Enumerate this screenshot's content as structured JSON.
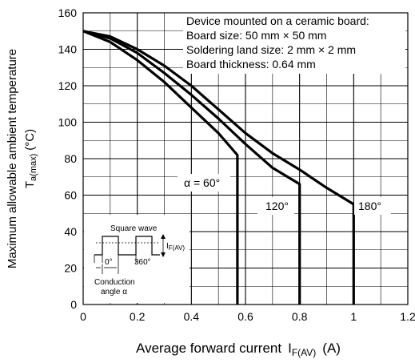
{
  "chart_data": {
    "type": "line",
    "xlim": [
      0,
      1.2
    ],
    "ylim": [
      0,
      160
    ],
    "x_ticks": [
      "0",
      "0.2",
      "0.4",
      "0.6",
      "0.8",
      "1",
      "1.2"
    ],
    "y_ticks": [
      "0",
      "20",
      "40",
      "60",
      "80",
      "100",
      "120",
      "140",
      "160"
    ],
    "grid": true,
    "ylabel": {
      "main": "Maximum allowable ambient temperature",
      "sym": "T",
      "sub": "a(max)",
      "unit": "(°C)"
    },
    "xlabel": {
      "main": "Average forward current",
      "sym": "I",
      "sub": "F(AV)",
      "unit": "(A)"
    },
    "series": [
      {
        "label": "α = 60°",
        "points": [
          [
            0,
            150
          ],
          [
            0.1,
            144
          ],
          [
            0.2,
            134
          ],
          [
            0.3,
            122
          ],
          [
            0.4,
            108
          ],
          [
            0.5,
            94
          ],
          [
            0.57,
            82
          ],
          [
            0.57,
            0
          ]
        ]
      },
      {
        "label": "120°",
        "points": [
          [
            0,
            150
          ],
          [
            0.1,
            146
          ],
          [
            0.2,
            138
          ],
          [
            0.3,
            127
          ],
          [
            0.4,
            115
          ],
          [
            0.5,
            102
          ],
          [
            0.6,
            88
          ],
          [
            0.7,
            75
          ],
          [
            0.8,
            66
          ],
          [
            0.8,
            0
          ]
        ]
      },
      {
        "label": "180°",
        "points": [
          [
            0,
            150
          ],
          [
            0.1,
            147
          ],
          [
            0.2,
            140
          ],
          [
            0.3,
            131
          ],
          [
            0.4,
            120
          ],
          [
            0.5,
            107
          ],
          [
            0.6,
            94
          ],
          [
            0.7,
            83
          ],
          [
            0.8,
            74
          ],
          [
            0.9,
            64
          ],
          [
            1.0,
            55
          ],
          [
            1.0,
            0
          ]
        ]
      }
    ],
    "annotation": {
      "lines": [
        "Device mounted on a ceramic board:",
        "Board size: 50 mm × 50 mm",
        "Soldering land size: 2 mm × 2 mm",
        "Board thickness: 0.64 mm"
      ]
    },
    "inset": {
      "title": "Square wave",
      "angle_start": "0°",
      "angle_end": "360°",
      "current_sym": "I",
      "current_sub": "F(AV)",
      "caption_1": "Conduction",
      "caption_2": "angle α"
    }
  }
}
